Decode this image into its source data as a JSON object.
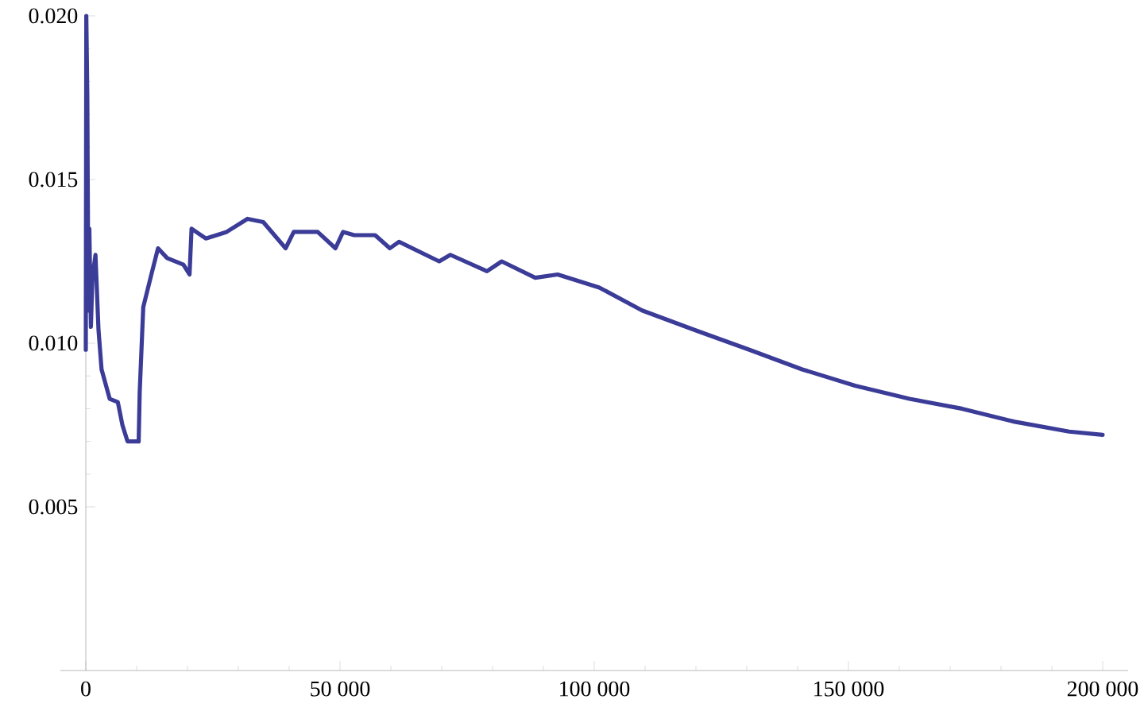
{
  "chart_data": {
    "type": "line",
    "x": [
      0,
      100,
      300,
      500,
      700,
      1000,
      1300,
      1900,
      2500,
      3100,
      4700,
      6300,
      7200,
      8200,
      10400,
      10600,
      11300,
      12900,
      14200,
      16000,
      19200,
      20400,
      20800,
      23600,
      27700,
      31800,
      34900,
      39300,
      40900,
      45600,
      49100,
      50600,
      52800,
      56900,
      59800,
      61600,
      69500,
      71700,
      78900,
      81800,
      88400,
      92800,
      101000,
      109400,
      119800,
      130500,
      140900,
      151300,
      162000,
      172300,
      182700,
      193400,
      200000
    ],
    "series": [
      {
        "color": "#3b3b98",
        "values": [
          0.0098,
          0.02,
          0.0175,
          0.011,
          0.0135,
          0.0105,
          0.012,
          0.0127,
          0.0104,
          0.0092,
          0.0083,
          0.0082,
          0.0075,
          0.007,
          0.007,
          0.0085,
          0.0111,
          0.0121,
          0.0129,
          0.0126,
          0.0124,
          0.0121,
          0.0135,
          0.0132,
          0.0134,
          0.0138,
          0.0137,
          0.0129,
          0.0134,
          0.0134,
          0.0129,
          0.0134,
          0.0133,
          0.0133,
          0.0129,
          0.0131,
          0.0125,
          0.0127,
          0.0122,
          0.0125,
          0.012,
          0.0121,
          0.0117,
          0.011,
          0.0104,
          0.0098,
          0.0092,
          0.0087,
          0.0083,
          0.008,
          0.0076,
          0.0073,
          0.0072
        ]
      }
    ],
    "xlim": [
      -5000,
      205000
    ],
    "ylim": [
      0,
      0.02
    ],
    "xticks": [
      {
        "value": 0,
        "label": "0"
      },
      {
        "value": 50000,
        "label": "50 000"
      },
      {
        "value": 100000,
        "label": "100 000"
      },
      {
        "value": 150000,
        "label": "150 000"
      },
      {
        "value": 200000,
        "label": "200 000"
      }
    ],
    "yticks": [
      {
        "value": 0.005,
        "label": "0.005"
      },
      {
        "value": 0.01,
        "label": "0.010"
      },
      {
        "value": 0.015,
        "label": "0.015"
      },
      {
        "value": 0.02,
        "label": "0.020"
      }
    ],
    "grid": false,
    "legend": false,
    "marker": "none",
    "line_style": "solid"
  }
}
